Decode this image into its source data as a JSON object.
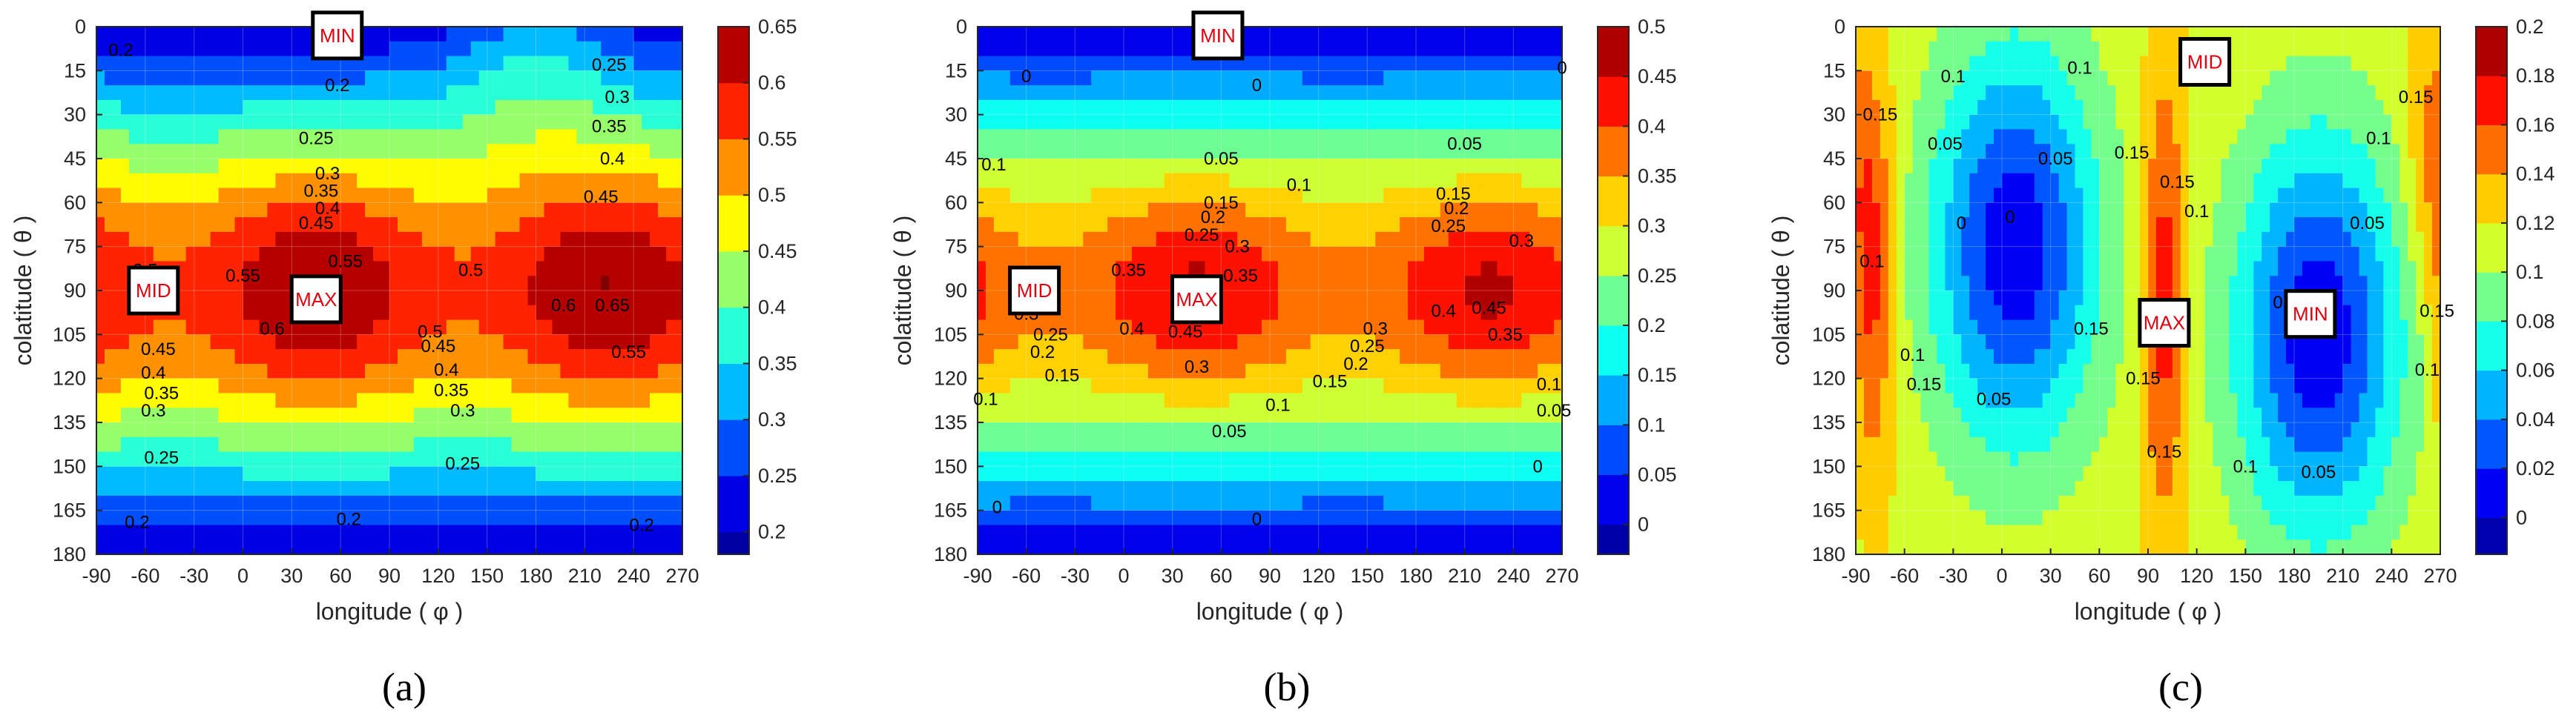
{
  "chart_data": [
    {
      "type": "contour",
      "panel_label": "(a)",
      "xlabel": "longitude ( φ )",
      "ylabel": "colatitude ( θ )",
      "x_ticks": [
        -90,
        -60,
        -30,
        0,
        30,
        60,
        90,
        120,
        150,
        180,
        210,
        240,
        270
      ],
      "y_ticks": [
        0,
        15,
        30,
        45,
        60,
        75,
        90,
        105,
        120,
        135,
        150,
        165,
        180
      ],
      "xlim": [
        -90,
        270
      ],
      "ylim": [
        0,
        180
      ],
      "colorbar": {
        "ticks": [
          "0.65",
          "0.6",
          "0.55",
          "0.5",
          "0.45",
          "0.4",
          "0.35",
          "0.3",
          "0.25",
          "0.2"
        ],
        "tick_values": [
          0.65,
          0.6,
          0.55,
          0.5,
          0.45,
          0.4,
          0.35,
          0.3,
          0.25,
          0.2
        ],
        "range": [
          0.18,
          0.65
        ]
      },
      "field": {
        "base": 0.2,
        "amp": 0.3,
        "lobes": [
          {
            "lon": 45,
            "colat": 90,
            "sl": 50,
            "st": 30,
            "a": 0.15
          },
          {
            "lon": 225,
            "colat": 90,
            "sl": 50,
            "st": 30,
            "a": 0.15
          },
          {
            "lon": 180,
            "colat": 0,
            "sl": 40,
            "st": 30,
            "a": 0.1
          }
        ]
      },
      "contour_labels": [
        {
          "text": "0.2",
          "lon": -75,
          "colat": 8
        },
        {
          "text": "0.2",
          "lon": 58,
          "colat": 20
        },
        {
          "text": "0.25",
          "lon": 225,
          "colat": 13
        },
        {
          "text": "0.3",
          "lon": 230,
          "colat": 24
        },
        {
          "text": "0.35",
          "lon": 225,
          "colat": 34
        },
        {
          "text": "0.4",
          "lon": 227,
          "colat": 45
        },
        {
          "text": "0.45",
          "lon": 220,
          "colat": 58
        },
        {
          "text": "0.25",
          "lon": 45,
          "colat": 38
        },
        {
          "text": "0.3",
          "lon": 52,
          "colat": 50
        },
        {
          "text": "0.35",
          "lon": 48,
          "colat": 56
        },
        {
          "text": "0.4",
          "lon": 52,
          "colat": 62
        },
        {
          "text": "0.45",
          "lon": 45,
          "colat": 67
        },
        {
          "text": "0.5",
          "lon": -60,
          "colat": 83
        },
        {
          "text": "0.55",
          "lon": 0,
          "colat": 85
        },
        {
          "text": "0.55",
          "lon": 63,
          "colat": 80
        },
        {
          "text": "0.6",
          "lon": 18,
          "colat": 103
        },
        {
          "text": "0.5",
          "lon": 140,
          "colat": 83
        },
        {
          "text": "0.5",
          "lon": 115,
          "colat": 104
        },
        {
          "text": "0.6",
          "lon": 197,
          "colat": 95
        },
        {
          "text": "0.65",
          "lon": 227,
          "colat": 95
        },
        {
          "text": "0.55",
          "lon": 237,
          "colat": 111
        },
        {
          "text": "0.45",
          "lon": -52,
          "colat": 110
        },
        {
          "text": "0.4",
          "lon": -55,
          "colat": 118
        },
        {
          "text": "0.35",
          "lon": -50,
          "colat": 125
        },
        {
          "text": "0.3",
          "lon": -55,
          "colat": 131
        },
        {
          "text": "0.25",
          "lon": -50,
          "colat": 147
        },
        {
          "text": "0.45",
          "lon": 120,
          "colat": 109
        },
        {
          "text": "0.4",
          "lon": 125,
          "colat": 117
        },
        {
          "text": "0.35",
          "lon": 128,
          "colat": 124
        },
        {
          "text": "0.3",
          "lon": 135,
          "colat": 131
        },
        {
          "text": "0.25",
          "lon": 135,
          "colat": 149
        },
        {
          "text": "0.2",
          "lon": -65,
          "colat": 169
        },
        {
          "text": "0.2",
          "lon": 65,
          "colat": 168
        },
        {
          "text": "0.2",
          "lon": 245,
          "colat": 170
        }
      ],
      "markers": [
        {
          "text": "MIN",
          "lon": 58,
          "colat": 3
        },
        {
          "text": "MID",
          "lon": -55,
          "colat": 90
        },
        {
          "text": "MAX",
          "lon": 45,
          "colat": 93
        }
      ]
    },
    {
      "type": "contour",
      "panel_label": "(b)",
      "xlabel": "longitude ( φ )",
      "ylabel": "colatitude ( θ )",
      "x_ticks": [
        -90,
        -60,
        -30,
        0,
        30,
        60,
        90,
        120,
        150,
        180,
        210,
        240,
        270
      ],
      "y_ticks": [
        0,
        15,
        30,
        45,
        60,
        75,
        90,
        105,
        120,
        135,
        150,
        165,
        180
      ],
      "xlim": [
        -90,
        270
      ],
      "ylim": [
        0,
        180
      ],
      "colorbar": {
        "ticks": [
          "0.5",
          "0.45",
          "0.4",
          "0.35",
          "0.3",
          "0.25",
          "0.2",
          "0.15",
          "0.1",
          "0.05",
          "0"
        ],
        "tick_values": [
          0.5,
          0.45,
          0.4,
          0.35,
          0.3,
          0.25,
          0.2,
          0.15,
          0.1,
          0.05,
          0
        ],
        "range": [
          -0.03,
          0.5
        ]
      },
      "field": {
        "base": 0.0,
        "amp": 0.33,
        "lobes": [
          {
            "lon": 45,
            "colat": 90,
            "sl": 45,
            "st": 25,
            "a": 0.13
          },
          {
            "lon": 225,
            "colat": 90,
            "sl": 45,
            "st": 25,
            "a": 0.13
          }
        ]
      },
      "contour_labels": [
        {
          "text": "0",
          "lon": -60,
          "colat": 17
        },
        {
          "text": "0",
          "lon": 82,
          "colat": 20
        },
        {
          "text": "0",
          "lon": 270,
          "colat": 14
        },
        {
          "text": "0.1",
          "lon": -80,
          "colat": 47
        },
        {
          "text": "0.05",
          "lon": 60,
          "colat": 45
        },
        {
          "text": "0.1",
          "lon": 108,
          "colat": 54
        },
        {
          "text": "0.05",
          "lon": 210,
          "colat": 40
        },
        {
          "text": "0.15",
          "lon": 60,
          "colat": 60
        },
        {
          "text": "0.2",
          "lon": 55,
          "colat": 65
        },
        {
          "text": "0.25",
          "lon": 48,
          "colat": 71
        },
        {
          "text": "0.3",
          "lon": 70,
          "colat": 75
        },
        {
          "text": "0.15",
          "lon": 203,
          "colat": 57
        },
        {
          "text": "0.2",
          "lon": 205,
          "colat": 62
        },
        {
          "text": "0.25",
          "lon": 200,
          "colat": 68
        },
        {
          "text": "0.3",
          "lon": 245,
          "colat": 73
        },
        {
          "text": "0.35",
          "lon": 3,
          "colat": 83
        },
        {
          "text": "0.35",
          "lon": 72,
          "colat": 85
        },
        {
          "text": "0.4",
          "lon": 5,
          "colat": 103
        },
        {
          "text": "0.45",
          "lon": 38,
          "colat": 104
        },
        {
          "text": "0.4",
          "lon": 197,
          "colat": 97
        },
        {
          "text": "0.45",
          "lon": 225,
          "colat": 96
        },
        {
          "text": "0.3",
          "lon": -60,
          "colat": 98
        },
        {
          "text": "0.25",
          "lon": -45,
          "colat": 105
        },
        {
          "text": "0.2",
          "lon": -50,
          "colat": 111
        },
        {
          "text": "0.15",
          "lon": -38,
          "colat": 119
        },
        {
          "text": "0.3",
          "lon": 155,
          "colat": 103
        },
        {
          "text": "0.35",
          "lon": 235,
          "colat": 105
        },
        {
          "text": "0.3",
          "lon": 45,
          "colat": 116
        },
        {
          "text": "0.25",
          "lon": 150,
          "colat": 109
        },
        {
          "text": "0.2",
          "lon": 143,
          "colat": 115
        },
        {
          "text": "0.15",
          "lon": 127,
          "colat": 121
        },
        {
          "text": "0.1",
          "lon": -85,
          "colat": 127
        },
        {
          "text": "0.1",
          "lon": 95,
          "colat": 129
        },
        {
          "text": "0.05",
          "lon": 65,
          "colat": 138
        },
        {
          "text": "0.1",
          "lon": 262,
          "colat": 122
        },
        {
          "text": "0.05",
          "lon": 265,
          "colat": 131
        },
        {
          "text": "0",
          "lon": 255,
          "colat": 150
        },
        {
          "text": "0",
          "lon": -78,
          "colat": 164
        },
        {
          "text": "0",
          "lon": 82,
          "colat": 168
        }
      ],
      "markers": [
        {
          "text": "MIN",
          "lon": 58,
          "colat": 3
        },
        {
          "text": "MID",
          "lon": -55,
          "colat": 90
        },
        {
          "text": "MAX",
          "lon": 45,
          "colat": 93
        }
      ]
    },
    {
      "type": "contour",
      "panel_label": "(c)",
      "xlabel": "longitude ( φ )",
      "ylabel": "colatitude ( θ )",
      "x_ticks": [
        -90,
        -60,
        -30,
        0,
        30,
        60,
        90,
        120,
        150,
        180,
        210,
        240,
        270
      ],
      "y_ticks": [
        0,
        15,
        30,
        45,
        60,
        75,
        90,
        105,
        120,
        135,
        150,
        165,
        180
      ],
      "xlim": [
        -90,
        270
      ],
      "ylim": [
        0,
        180
      ],
      "colorbar": {
        "ticks": [
          "0.2",
          "0.18",
          "0.16",
          "0.14",
          "0.12",
          "0.1",
          "0.08",
          "0.06",
          "0.04",
          "0.02",
          "0"
        ],
        "tick_values": [
          0.2,
          0.18,
          0.16,
          0.14,
          0.12,
          0.1,
          0.08,
          0.06,
          0.04,
          0.02,
          0
        ],
        "range": [
          -0.015,
          0.2
        ]
      },
      "field": {
        "base": 0.115,
        "amp": 0.0,
        "lobes": [
          {
            "lon": 8,
            "colat": 75,
            "sl": 36,
            "st": 48,
            "a": -0.11
          },
          {
            "lon": 195,
            "colat": 105,
            "sl": 36,
            "st": 48,
            "a": -0.11
          },
          {
            "lon": -80,
            "colat": 85,
            "sl": 10,
            "st": 50,
            "a": 0.06
          },
          {
            "lon": 100,
            "colat": 92,
            "sl": 10,
            "st": 55,
            "a": 0.06
          },
          {
            "lon": 262,
            "colat": 45,
            "sl": 10,
            "st": 35,
            "a": 0.03
          }
        ]
      },
      "contour_labels": [
        {
          "text": "0.15",
          "lon": -75,
          "colat": 30
        },
        {
          "text": "0.1",
          "lon": -30,
          "colat": 17
        },
        {
          "text": "0.05",
          "lon": -35,
          "colat": 40
        },
        {
          "text": "0.1",
          "lon": 48,
          "colat": 14
        },
        {
          "text": "0.05",
          "lon": 33,
          "colat": 45
        },
        {
          "text": "0",
          "lon": -25,
          "colat": 67
        },
        {
          "text": "0",
          "lon": 5,
          "colat": 65
        },
        {
          "text": "0.15",
          "lon": 80,
          "colat": 43
        },
        {
          "text": "0.15",
          "lon": 108,
          "colat": 53
        },
        {
          "text": "0.1",
          "lon": 120,
          "colat": 63
        },
        {
          "text": "0.1",
          "lon": 232,
          "colat": 38
        },
        {
          "text": "0.15",
          "lon": 255,
          "colat": 24
        },
        {
          "text": "0.05",
          "lon": 225,
          "colat": 67
        },
        {
          "text": "0",
          "lon": 170,
          "colat": 94
        },
        {
          "text": "0.1",
          "lon": -80,
          "colat": 80
        },
        {
          "text": "0.1",
          "lon": -55,
          "colat": 112
        },
        {
          "text": "0.15",
          "lon": -48,
          "colat": 122
        },
        {
          "text": "0.05",
          "lon": -5,
          "colat": 127
        },
        {
          "text": "0.15",
          "lon": 55,
          "colat": 103
        },
        {
          "text": "0.15",
          "lon": 87,
          "colat": 120
        },
        {
          "text": "0.15",
          "lon": 100,
          "colat": 145
        },
        {
          "text": "0.1",
          "lon": 150,
          "colat": 150
        },
        {
          "text": "0.05",
          "lon": 195,
          "colat": 152
        },
        {
          "text": "0.1",
          "lon": 262,
          "colat": 117
        },
        {
          "text": "0.15",
          "lon": 268,
          "colat": 97
        }
      ],
      "markers": [
        {
          "text": "MID",
          "lon": 125,
          "colat": 12
        },
        {
          "text": "MAX",
          "lon": 100,
          "colat": 101
        },
        {
          "text": "MIN",
          "lon": 190,
          "colat": 98
        }
      ]
    }
  ],
  "colors": {
    "jet": [
      "#00008f",
      "#0000ff",
      "#0080ff",
      "#00ffff",
      "#80ff80",
      "#ffff00",
      "#ff8000",
      "#ff0000",
      "#800000"
    ],
    "axis": "#262626",
    "contour_line": "#000000",
    "marker_text": "#e0000f",
    "marker_border": "#000000"
  }
}
